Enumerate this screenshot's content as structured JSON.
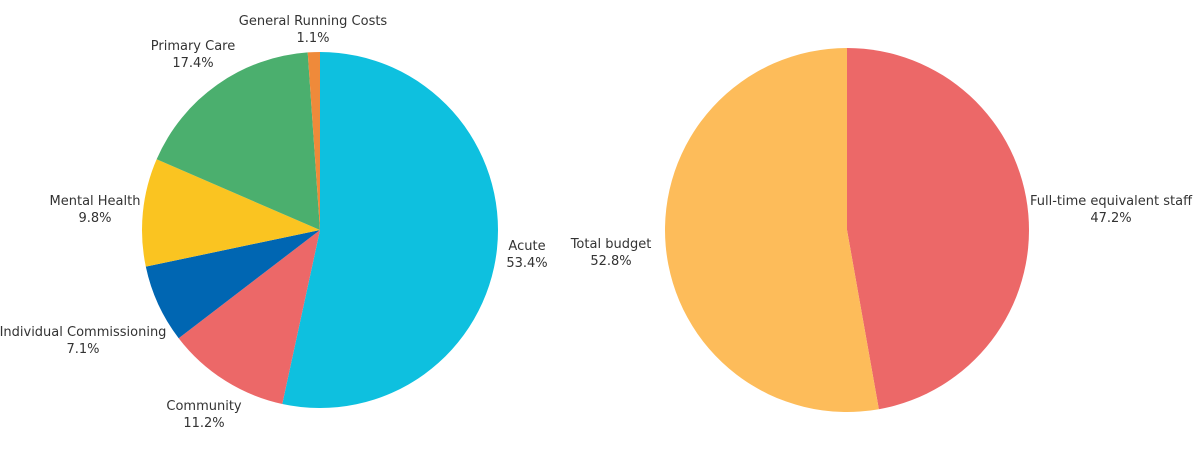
{
  "chart_data": [
    {
      "type": "pie",
      "title": "",
      "start": "top",
      "direction": "clockwise",
      "slices": [
        {
          "label": "Acute",
          "value": 53.4,
          "value_label": "53.4%",
          "color": "#0EC0DF"
        },
        {
          "label": "Community",
          "value": 11.2,
          "value_label": "11.2%",
          "color": "#EC6868"
        },
        {
          "label": "Individual Commissioning",
          "value": 7.1,
          "value_label": "7.1%",
          "color": "#0066B2"
        },
        {
          "label": "Mental Health",
          "value": 9.8,
          "value_label": "9.8%",
          "color": "#FAC421"
        },
        {
          "label": "Primary Care",
          "value": 17.4,
          "value_label": "17.4%",
          "color": "#4BAF6E"
        },
        {
          "label": "General Running Costs",
          "value": 1.1,
          "value_label": "1.1%",
          "color": "#EF8A3A"
        }
      ]
    },
    {
      "type": "pie",
      "title": "",
      "start": "top",
      "direction": "clockwise",
      "slices": [
        {
          "label": "Full-time equivalent staff",
          "value": 47.2,
          "value_label": "47.2%",
          "color": "#EC6868"
        },
        {
          "label": "Total budget",
          "value": 52.8,
          "value_label": "52.8%",
          "color": "#FDBC5A"
        }
      ]
    }
  ]
}
